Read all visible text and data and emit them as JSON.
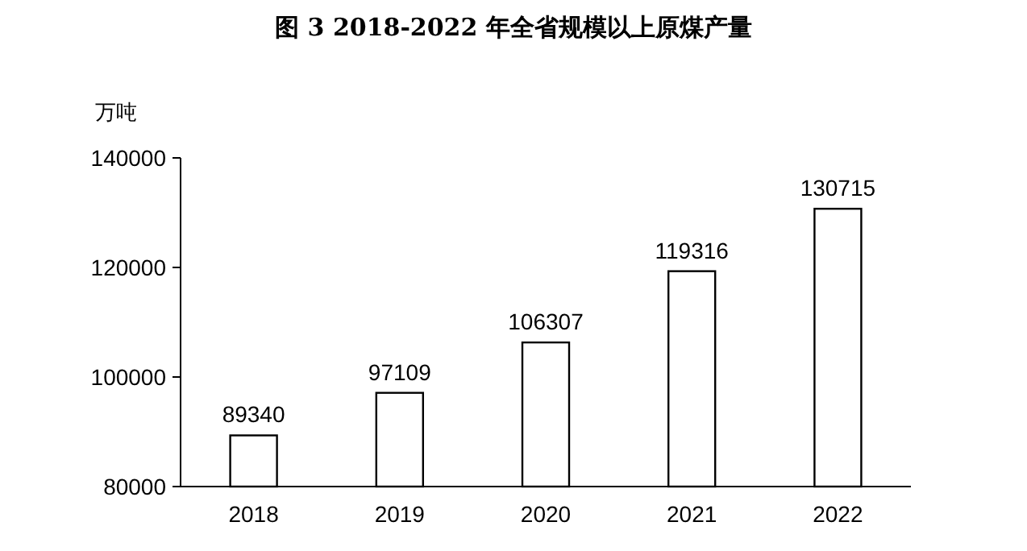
{
  "chart_data": {
    "type": "bar",
    "title": "图 3   2018-2022 年全省规模以上原煤产量",
    "ylabel": "万吨",
    "categories": [
      "2018",
      "2019",
      "2020",
      "2021",
      "2022"
    ],
    "values": [
      89340,
      97109,
      106307,
      119316,
      130715
    ],
    "color": "#ffffff",
    "ylim": [
      80000,
      140000
    ],
    "yticks": [
      80000,
      100000,
      120000,
      140000
    ],
    "data_labels": true,
    "grid": false
  }
}
